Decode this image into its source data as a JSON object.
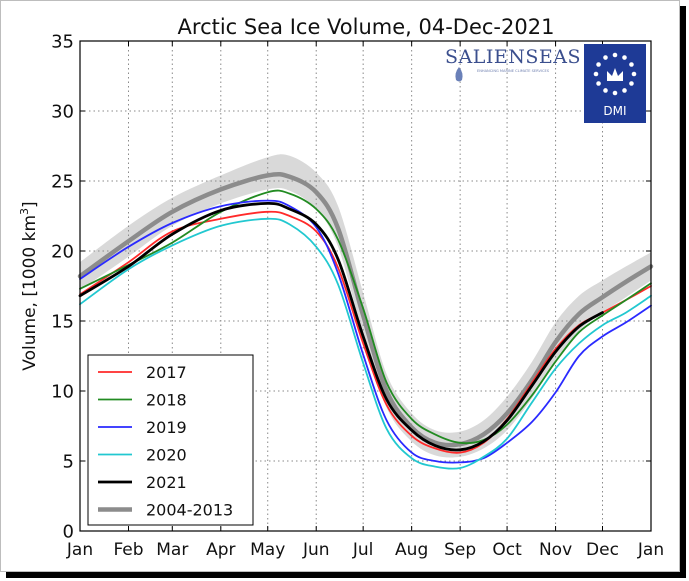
{
  "chart_data": {
    "type": "line",
    "title": "Arctic Sea Ice Volume, 04-Dec-2021",
    "xlabel": "",
    "ylabel_main": "Volume, [1000 km",
    "ylabel_exp": "3",
    "ylabel_close": "]",
    "ylim": [
      0,
      35
    ],
    "yticks": [
      0,
      5,
      10,
      15,
      20,
      25,
      30,
      35
    ],
    "xlim": [
      1,
      366
    ],
    "xticks": [
      {
        "label": "Jan",
        "day": 1
      },
      {
        "label": "Feb",
        "day": 32
      },
      {
        "label": "Mar",
        "day": 60
      },
      {
        "label": "Apr",
        "day": 91
      },
      {
        "label": "May",
        "day": 121
      },
      {
        "label": "Jun",
        "day": 152
      },
      {
        "label": "Jul",
        "day": 182
      },
      {
        "label": "Aug",
        "day": 213
      },
      {
        "label": "Sep",
        "day": 244
      },
      {
        "label": "Oct",
        "day": 274
      },
      {
        "label": "Nov",
        "day": 305
      },
      {
        "label": "Dec",
        "day": 335
      },
      {
        "label": "Jan",
        "day": 366
      }
    ],
    "grid": true,
    "legend_position": "bottom-left",
    "band": {
      "x": [
        1,
        32,
        60,
        91,
        121,
        135,
        152,
        166,
        182,
        197,
        213,
        228,
        244,
        259,
        274,
        290,
        305,
        320,
        335,
        350,
        366
      ],
      "upper": [
        19.2,
        21.8,
        23.8,
        25.4,
        26.7,
        26.8,
        25.6,
        23.2,
        17.0,
        11.2,
        8.4,
        7.2,
        7.1,
        7.9,
        9.6,
        12.1,
        14.9,
        16.8,
        17.9,
        18.9,
        19.9
      ],
      "lower": [
        17.2,
        19.6,
        21.8,
        23.4,
        24.4,
        24.3,
        23.0,
        20.3,
        14.0,
        8.8,
        6.4,
        5.4,
        5.3,
        5.9,
        7.2,
        9.5,
        12.2,
        14.3,
        15.6,
        16.7,
        17.9
      ]
    },
    "series": [
      {
        "name": "2017",
        "color": "#ff2a2a",
        "width": 1.8,
        "x": [
          1,
          32,
          60,
          91,
          121,
          135,
          152,
          166,
          182,
          197,
          213,
          228,
          244,
          259,
          274,
          290,
          305,
          320,
          335,
          350,
          366
        ],
        "values": [
          16.9,
          19.2,
          21.4,
          22.3,
          22.8,
          22.5,
          21.4,
          18.8,
          13.4,
          9.0,
          6.8,
          5.9,
          5.6,
          6.3,
          8.0,
          10.6,
          13.0,
          14.7,
          15.6,
          16.5,
          17.5
        ]
      },
      {
        "name": "2018",
        "color": "#228b22",
        "width": 1.8,
        "x": [
          1,
          32,
          60,
          91,
          121,
          135,
          152,
          166,
          182,
          197,
          213,
          228,
          244,
          259,
          274,
          290,
          305,
          320,
          335,
          350,
          366
        ],
        "values": [
          17.3,
          19.0,
          20.6,
          22.8,
          24.2,
          24.1,
          23.0,
          20.8,
          15.9,
          10.6,
          8.0,
          6.9,
          6.3,
          6.5,
          7.6,
          9.7,
          12.1,
          14.2,
          15.4,
          16.5,
          17.7
        ]
      },
      {
        "name": "2019",
        "color": "#2a2aff",
        "width": 1.8,
        "x": [
          1,
          32,
          60,
          91,
          121,
          135,
          152,
          166,
          182,
          197,
          213,
          228,
          244,
          259,
          274,
          290,
          305,
          320,
          335,
          350,
          366
        ],
        "values": [
          18.0,
          20.3,
          22.0,
          23.2,
          23.6,
          23.2,
          21.7,
          18.4,
          12.6,
          7.9,
          5.6,
          5.0,
          4.9,
          5.2,
          6.3,
          7.8,
          9.9,
          12.5,
          13.9,
          14.9,
          16.1
        ]
      },
      {
        "name": "2020",
        "color": "#22c8d0",
        "width": 1.8,
        "x": [
          1,
          32,
          60,
          91,
          121,
          135,
          152,
          166,
          182,
          197,
          213,
          228,
          244,
          259,
          274,
          290,
          305,
          320,
          335,
          350,
          366
        ],
        "values": [
          16.2,
          18.7,
          20.4,
          21.8,
          22.3,
          21.9,
          20.3,
          17.6,
          12.0,
          7.3,
          5.2,
          4.6,
          4.5,
          5.3,
          6.6,
          9.2,
          11.6,
          13.4,
          14.7,
          15.6,
          16.8
        ]
      },
      {
        "name": "2021",
        "color": "#000000",
        "width": 2.8,
        "x": [
          1,
          32,
          60,
          91,
          121,
          135,
          152,
          166,
          182,
          197,
          213,
          228,
          244,
          259,
          274,
          290,
          305,
          320,
          335
        ],
        "values": [
          16.8,
          18.9,
          21.2,
          22.9,
          23.4,
          23.0,
          21.9,
          19.4,
          13.9,
          9.4,
          7.2,
          6.1,
          5.8,
          6.4,
          7.9,
          10.4,
          12.8,
          14.6,
          15.6
        ]
      },
      {
        "name": "2004-2013",
        "color": "#8c8c8c",
        "width": 4.5,
        "x": [
          1,
          32,
          60,
          91,
          121,
          135,
          152,
          166,
          182,
          197,
          213,
          228,
          244,
          259,
          274,
          290,
          305,
          320,
          335,
          350,
          366
        ],
        "values": [
          18.2,
          20.7,
          22.8,
          24.4,
          25.4,
          25.3,
          24.2,
          21.6,
          15.4,
          10.0,
          7.4,
          6.3,
          6.2,
          6.9,
          8.4,
          10.8,
          13.5,
          15.5,
          16.7,
          17.8,
          18.9
        ]
      }
    ]
  },
  "logo": {
    "brand": "SALIENSEAS",
    "tagline": "ENHANCING MARINE CLIMATE SERVICES",
    "dmi": "DMI"
  }
}
